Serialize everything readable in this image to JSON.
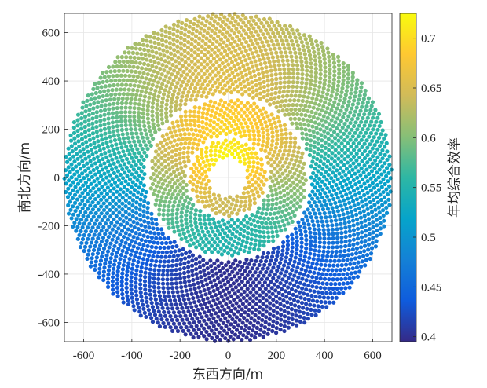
{
  "chart_data": {
    "type": "scatter",
    "description_of_points": "heliostat field, points colored by value",
    "xlabel": "东西方向/m",
    "ylabel": "南北方向/m",
    "colorbar_label": "年均综合效率",
    "xlim": [
      -680,
      680
    ],
    "ylim": [
      -680,
      680
    ],
    "xticks": [
      -600,
      -400,
      -200,
      0,
      200,
      400,
      600
    ],
    "yticks": [
      -600,
      -400,
      -200,
      0,
      200,
      400,
      600
    ],
    "xtick_labels": [
      "-600",
      "-400",
      "-200",
      "0",
      "200",
      "400",
      "600"
    ],
    "ytick_labels": [
      "-600",
      "-400",
      "-200",
      "0",
      "200",
      "400",
      "600"
    ],
    "colorbar_range": [
      0.395,
      0.725
    ],
    "colorbar_ticks": [
      0.4,
      0.45,
      0.5,
      0.55,
      0.6,
      0.65,
      0.7
    ],
    "colorbar_tick_labels": [
      "0.4",
      "0.45",
      "0.5",
      "0.55",
      "0.6",
      "0.65",
      "0.7"
    ],
    "colormap": "parula",
    "grid": true,
    "field_zones": [
      {
        "r_inner": 80,
        "r_outer": 160,
        "value_north": 0.725,
        "value_south": 0.64
      },
      {
        "r_inner": 175,
        "r_outer": 325,
        "value_north": 0.7,
        "value_south": 0.55
      },
      {
        "r_inner": 345,
        "r_outer": 680,
        "value_north": 0.66,
        "value_south": 0.4
      }
    ],
    "parula_colors": [
      "#352a87",
      "#0f5cdd",
      "#1481d6",
      "#06a4ca",
      "#2eb7a4",
      "#87bf77",
      "#d1bb59",
      "#fec832",
      "#f9fb0e"
    ]
  }
}
